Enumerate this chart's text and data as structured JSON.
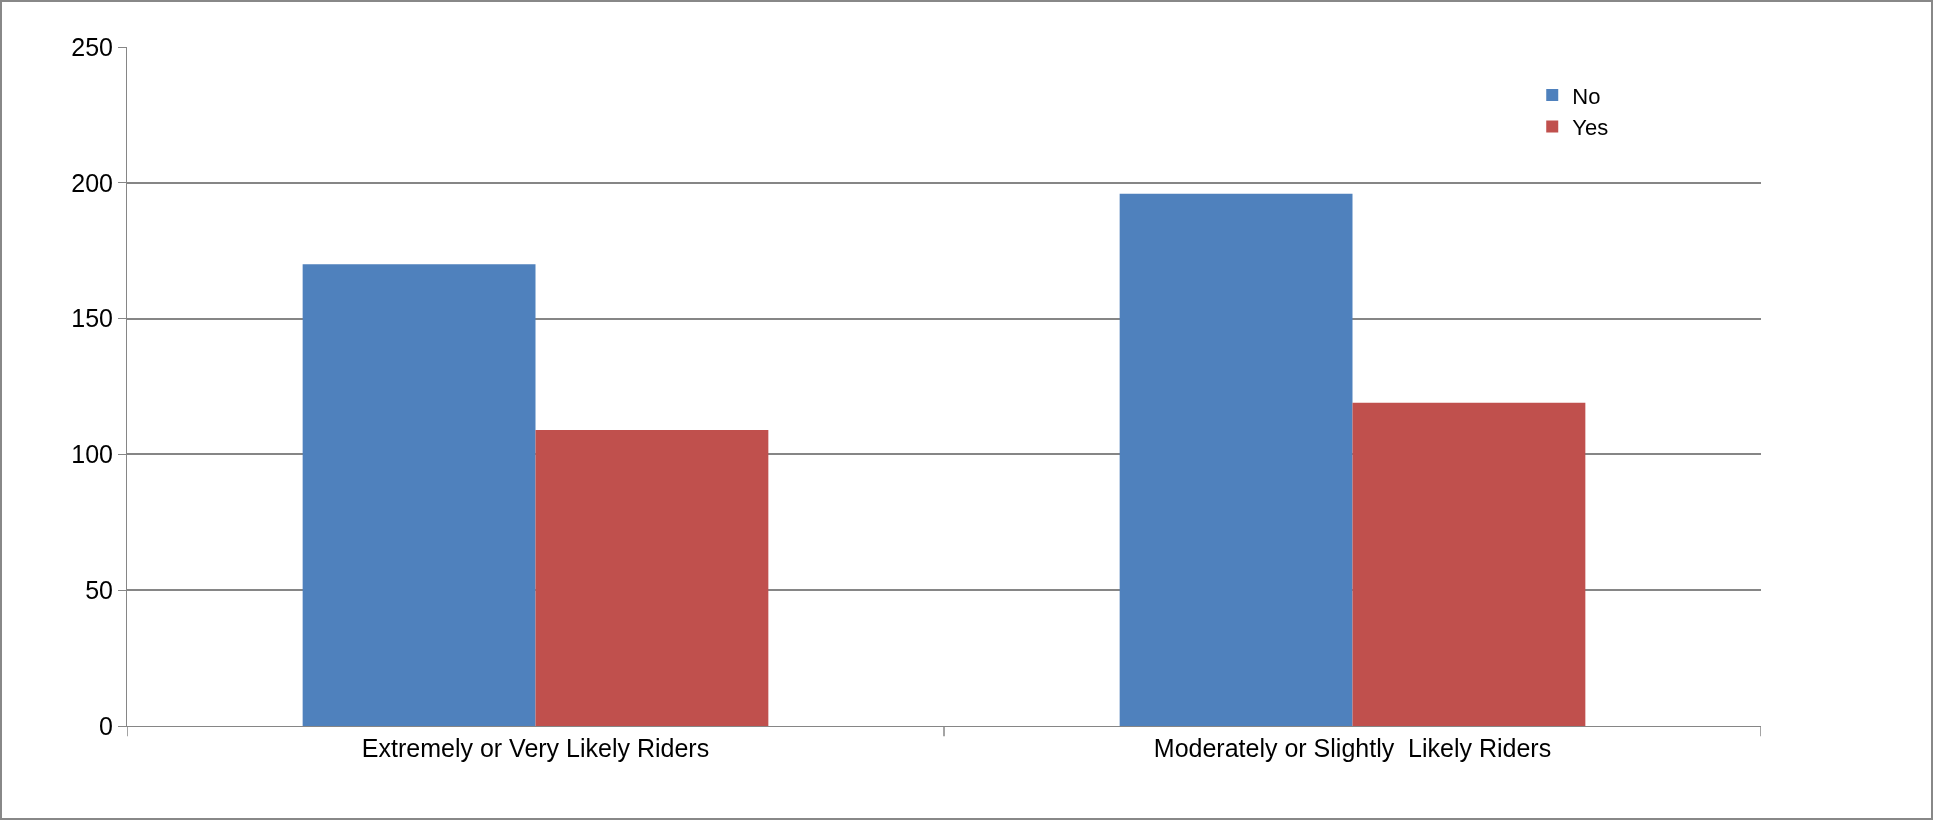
{
  "chart_data": {
    "type": "bar",
    "categories": [
      "Extremely or Very Likely Riders",
      "Moderately or Slightly  Likely Riders"
    ],
    "series": [
      {
        "name": "No",
        "color": "#4f81bd",
        "values": [
          170,
          196
        ]
      },
      {
        "name": "Yes",
        "color": "#c0504d",
        "values": [
          109,
          119
        ]
      }
    ],
    "ylim": [
      0,
      250
    ],
    "yticks": [
      0,
      50,
      100,
      150,
      200,
      250
    ],
    "grid": "y",
    "legend": "top right"
  }
}
